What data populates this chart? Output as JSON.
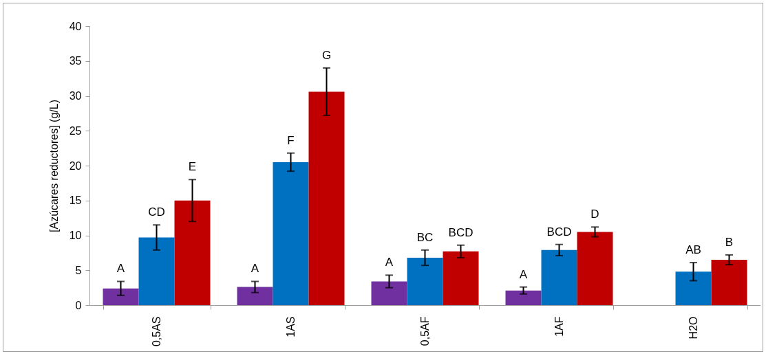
{
  "chart_data": {
    "type": "bar",
    "ylabel": "[Azúcares reductores] (g/L)",
    "categories": [
      "0,5AS",
      "1AS",
      "0,5AF",
      "1AF",
      "H2O"
    ],
    "series": [
      {
        "color": "#7030a0",
        "values": [
          2.4,
          2.6,
          3.4,
          2.1,
          null
        ],
        "errors": [
          1.0,
          0.8,
          0.9,
          0.5,
          null
        ],
        "value_labels": [
          "A",
          "A",
          "A",
          "A",
          null
        ]
      },
      {
        "color": "#0070c0",
        "values": [
          9.7,
          20.5,
          6.8,
          7.9,
          4.8
        ],
        "errors": [
          1.8,
          1.3,
          1.1,
          0.8,
          1.3
        ],
        "value_labels": [
          "CD",
          "F",
          "BC",
          "BCD",
          "AB"
        ]
      },
      {
        "color": "#c00000",
        "values": [
          15.0,
          30.6,
          7.7,
          10.5,
          6.5
        ],
        "errors": [
          3.0,
          3.4,
          0.9,
          0.7,
          0.7
        ],
        "value_labels": [
          "E",
          "G",
          "BCD",
          "D",
          "B"
        ]
      }
    ],
    "ylim": [
      0,
      40
    ],
    "yticks": [
      0,
      5,
      10,
      15,
      20,
      25,
      30,
      35,
      40
    ],
    "grid": false,
    "legend": false
  }
}
